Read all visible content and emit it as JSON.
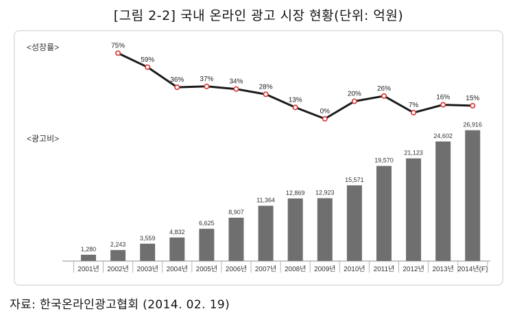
{
  "title": "[그림 2-2] 국내 온라인 광고 시장 현황(단위: 억원)",
  "source": "자료: 한국온라인광고협회 (2014. 02. 19)",
  "chart_data": {
    "type": "bar",
    "categories": [
      "2001년",
      "2002년",
      "2003년",
      "2004년",
      "2005년",
      "2006년",
      "2007년",
      "2008년",
      "2009년",
      "2010년",
      "2011년",
      "2012년",
      "2013년",
      "2014년(F)"
    ],
    "series": [
      {
        "name": "<광고비>",
        "type": "bar",
        "values": [
          1280,
          2243,
          3559,
          4832,
          6625,
          8907,
          11364,
          12869,
          12923,
          15571,
          19570,
          21123,
          24602,
          26916
        ],
        "labels": [
          "1,280",
          "2,243",
          "3,559",
          "4,832",
          "6,625",
          "8,907",
          "11,364",
          "12,869",
          "12,923",
          "15,571",
          "19,570",
          "21,123",
          "24,602",
          "26,916"
        ],
        "color": "#6f6f6f"
      },
      {
        "name": "<성장률>",
        "type": "line",
        "values": [
          null,
          75,
          59,
          36,
          37,
          34,
          28,
          13,
          0,
          20,
          26,
          7,
          16,
          15
        ],
        "labels": [
          "",
          "75%",
          "59%",
          "36%",
          "37%",
          "34%",
          "28%",
          "13%",
          "0%",
          "20%",
          "26%",
          "7%",
          "16%",
          "15%"
        ],
        "color": "#1a1a1a",
        "marker_color": "#d63b3b"
      }
    ],
    "ylim_bars": [
      0,
      28000
    ],
    "ylim_growth": [
      0,
      80
    ],
    "xlabel": "",
    "ylabel": "",
    "grid": false
  }
}
